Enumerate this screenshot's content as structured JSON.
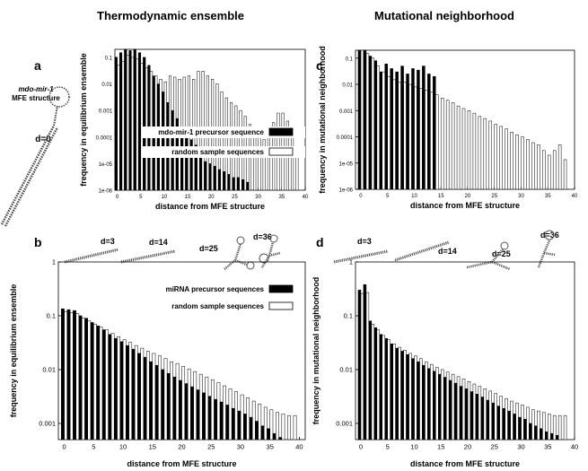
{
  "headers": {
    "left": "Thermodynamic ensemble",
    "right": "Mutational neighborhood"
  },
  "panel_letters": [
    "a",
    "b",
    "c",
    "d"
  ],
  "structure_labels": {
    "name": "mdo-mir-1",
    "subtitle": "MFE structure",
    "d0": "d=0",
    "d3": "d=3",
    "d14": "d=14",
    "d25": "d=25",
    "d36": "d=36"
  },
  "colors": {
    "black_series": "#000000",
    "white_series": "#ffffff",
    "outline": "#000000"
  },
  "chart_data": [
    {
      "id": "a",
      "type": "bar",
      "xlabel": "distance from MFE structure",
      "ylabel": "frequency in equilibrium ensemble",
      "log_y": true,
      "ylim": [
        1e-06,
        0.2
      ],
      "yticks": [
        1e-06,
        1e-05,
        0.0001,
        0.001,
        0.01,
        0.1
      ],
      "ytick_labels": [
        "1e-06",
        "1e-05",
        "0.0001",
        "0.001",
        "0.01",
        "0.1"
      ],
      "xticks": [
        0,
        5,
        10,
        15,
        20,
        25,
        30,
        35,
        40
      ],
      "xlim": [
        -0.5,
        40
      ],
      "legend_position": "lower-right",
      "series": [
        {
          "name": "mdo-mir-1 precursor sequence",
          "fill": "black",
          "values": [
            0.1,
            0.15,
            0.2,
            0.18,
            0.2,
            0.15,
            0.1,
            0.05,
            0.02,
            0.01,
            0.005,
            0.002,
            0.001,
            0.0005,
            0.0002,
            0.00012,
            8e-05,
            5e-05,
            2e-05,
            1.2e-05,
            1e-05,
            8e-06,
            6e-06,
            5e-06,
            4e-06,
            3e-06,
            3e-06,
            2.5e-06,
            2e-06,
            null,
            null,
            null,
            null,
            null,
            null,
            null,
            null,
            null,
            null
          ]
        },
        {
          "name": "random sample sequences",
          "fill": "white",
          "values": [
            0.05,
            0.07,
            0.12,
            0.1,
            0.09,
            0.06,
            0.04,
            0.03,
            0.02,
            0.015,
            0.012,
            0.02,
            0.018,
            0.015,
            0.018,
            0.02,
            0.015,
            0.03,
            0.03,
            0.02,
            0.015,
            0.01,
            0.005,
            0.003,
            0.002,
            0.0015,
            0.001,
            0.0006,
            0.0003,
            0.00015,
            0.0001,
            8e-05,
            0.0002,
            0.00035,
            0.0008,
            0.0008,
            0.0004,
            0.0002,
            2e-05
          ]
        }
      ]
    },
    {
      "id": "b",
      "type": "bar",
      "xlabel": "distance from MFE structure",
      "ylabel": "frequency in equilibrium ensemble",
      "log_y": true,
      "ylim": [
        0.0005,
        1
      ],
      "yticks": [
        0.001,
        0.01,
        0.1,
        1
      ],
      "ytick_labels": [
        "0.001",
        "0.01",
        "0.1",
        "1"
      ],
      "xticks": [
        0,
        5,
        10,
        15,
        20,
        25,
        30,
        35,
        40
      ],
      "xlim": [
        -1,
        41
      ],
      "legend_position": "top-right",
      "series": [
        {
          "name": "miRNA precursor sequences",
          "fill": "black",
          "values": [
            0.135,
            0.13,
            0.125,
            0.1,
            0.09,
            0.075,
            0.065,
            0.055,
            0.045,
            0.038,
            0.033,
            0.028,
            0.024,
            0.02,
            0.017,
            0.014,
            0.012,
            0.01,
            0.0085,
            0.0073,
            0.0063,
            0.0055,
            0.0048,
            0.0042,
            0.0037,
            0.0032,
            0.0028,
            0.0025,
            0.0022,
            0.0019,
            0.0017,
            0.0015,
            0.0013,
            0.0011,
            0.0009,
            0.0008,
            0.00065,
            0.00055
          ]
        },
        {
          "name": "random sample sequences",
          "fill": "white",
          "values": [
            0.12,
            0.115,
            0.11,
            0.09,
            0.08,
            0.07,
            0.062,
            0.055,
            0.047,
            0.041,
            0.036,
            0.032,
            0.028,
            0.025,
            0.022,
            0.02,
            0.018,
            0.016,
            0.014,
            0.013,
            0.0115,
            0.0103,
            0.0092,
            0.0082,
            0.0073,
            0.0065,
            0.0057,
            0.005,
            0.0044,
            0.0039,
            0.0034,
            0.003,
            0.0026,
            0.0023,
            0.002,
            0.0018,
            0.0016,
            0.0015,
            0.0014,
            0.0014
          ]
        }
      ]
    },
    {
      "id": "c",
      "type": "bar",
      "xlabel": "distance from MFE structure",
      "ylabel": "frequency in mutational neighborhood",
      "log_y": true,
      "ylim": [
        1e-06,
        0.2
      ],
      "yticks": [
        1e-06,
        1e-05,
        0.0001,
        0.001,
        0.01,
        0.1
      ],
      "ytick_labels": [
        "1e-06",
        "1e-05",
        "0.0001",
        "0.001",
        "0.01",
        "0.1"
      ],
      "xticks": [
        0,
        5,
        10,
        15,
        20,
        25,
        30,
        35,
        40
      ],
      "xlim": [
        -1,
        40
      ],
      "legend_position": "none",
      "series": [
        {
          "name": "mdo-mir-1",
          "fill": "black",
          "values": [
            0.2,
            0.2,
            0.12,
            0.08,
            0.03,
            0.06,
            0.04,
            0.03,
            0.05,
            0.025,
            0.04,
            0.035,
            0.05,
            0.025,
            0.02,
            null,
            null,
            null,
            null,
            null,
            null,
            null,
            null,
            null,
            null,
            null,
            null,
            null,
            null,
            null,
            null,
            null,
            null,
            null,
            null,
            null,
            null,
            null,
            null
          ]
        },
        {
          "name": "random",
          "fill": "white",
          "values": [
            0.2,
            0.15,
            0.1,
            0.05,
            0.03,
            0.02,
            0.015,
            0.012,
            0.012,
            0.01,
            0.008,
            0.007,
            0.006,
            0.005,
            0.004,
            0.003,
            0.0025,
            0.002,
            0.0015,
            0.0012,
            0.001,
            0.0008,
            0.0006,
            0.0005,
            0.0004,
            0.0003,
            0.00025,
            0.0002,
            0.00015,
            0.00012,
            0.0001,
            8e-05,
            6e-05,
            5e-05,
            3e-05,
            2e-05,
            3e-05,
            5e-05,
            1.35e-05
          ]
        }
      ]
    },
    {
      "id": "d",
      "type": "bar",
      "xlabel": "distance from MFE structure",
      "ylabel": "frequency in mutational neighborhood",
      "log_y": true,
      "ylim": [
        0.0005,
        1
      ],
      "yticks": [
        0.001,
        0.01,
        0.1,
        1
      ],
      "ytick_labels": [
        "0.001",
        "0.01",
        "0.1",
        "1"
      ],
      "xticks": [
        0,
        5,
        10,
        15,
        20,
        25,
        30,
        35,
        40
      ],
      "xlim": [
        -1,
        40
      ],
      "legend_position": "none",
      "series": [
        {
          "name": "miRNA",
          "fill": "black",
          "values": [
            0.3,
            0.38,
            0.08,
            0.06,
            0.045,
            0.038,
            0.03,
            0.025,
            0.022,
            0.019,
            0.016,
            0.014,
            0.012,
            0.0105,
            0.0093,
            0.0082,
            0.0072,
            0.0063,
            0.0056,
            0.0049,
            0.0044,
            0.0039,
            0.0035,
            0.0031,
            0.0027,
            0.0024,
            0.0021,
            0.0019,
            0.0017,
            0.0015,
            0.0013,
            0.0012,
            0.001,
            0.0009,
            0.0008,
            0.0007,
            0.00065,
            0.0006
          ]
        },
        {
          "name": "random",
          "fill": "white",
          "values": [
            0.26,
            0.27,
            0.07,
            0.055,
            0.043,
            0.036,
            0.03,
            0.026,
            0.023,
            0.02,
            0.018,
            0.016,
            0.014,
            0.0125,
            0.011,
            0.01,
            0.009,
            0.0082,
            0.0074,
            0.0067,
            0.006,
            0.0054,
            0.0049,
            0.0044,
            0.004,
            0.0036,
            0.0032,
            0.0029,
            0.0026,
            0.0024,
            0.0022,
            0.002,
            0.0018,
            0.0017,
            0.0016,
            0.0015,
            0.0014,
            0.0014,
            0.0014
          ]
        }
      ]
    }
  ]
}
